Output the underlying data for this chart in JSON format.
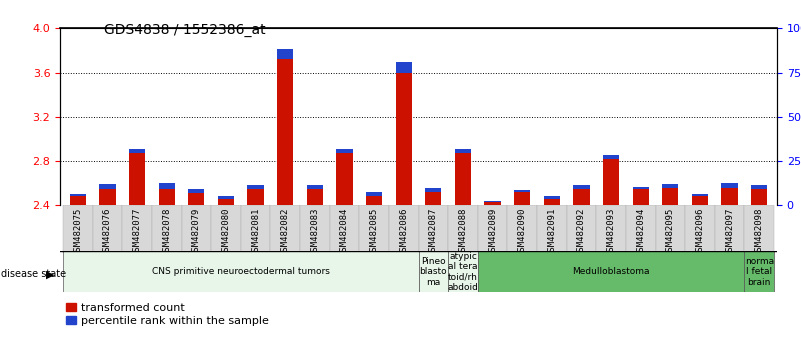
{
  "title": "GDS4838 / 1552386_at",
  "samples": [
    "GSM482075",
    "GSM482076",
    "GSM482077",
    "GSM482078",
    "GSM482079",
    "GSM482080",
    "GSM482081",
    "GSM482082",
    "GSM482083",
    "GSM482084",
    "GSM482085",
    "GSM482086",
    "GSM482087",
    "GSM482088",
    "GSM482089",
    "GSM482090",
    "GSM482091",
    "GSM482092",
    "GSM482093",
    "GSM482094",
    "GSM482095",
    "GSM482096",
    "GSM482097",
    "GSM482098"
  ],
  "red_values": [
    2.48,
    2.55,
    2.87,
    2.55,
    2.51,
    2.46,
    2.55,
    3.72,
    2.55,
    2.87,
    2.48,
    3.6,
    2.52,
    2.87,
    2.43,
    2.52,
    2.46,
    2.55,
    2.82,
    2.55,
    2.56,
    2.48,
    2.56,
    2.55
  ],
  "blue_fractions": [
    0.1,
    0.18,
    0.15,
    0.2,
    0.15,
    0.08,
    0.15,
    0.38,
    0.15,
    0.15,
    0.15,
    0.38,
    0.15,
    0.15,
    0.05,
    0.08,
    0.1,
    0.15,
    0.15,
    0.08,
    0.12,
    0.1,
    0.15,
    0.15
  ],
  "ylim": [
    2.4,
    4.0
  ],
  "yticks": [
    2.4,
    2.8,
    3.2,
    3.6,
    4.0
  ],
  "right_yticks_val": [
    2.4,
    2.8,
    3.2,
    3.6,
    4.0
  ],
  "right_yticks_label": [
    "0",
    "25",
    "50",
    "75",
    "100%"
  ],
  "disease_groups": [
    {
      "label": "CNS primitive neuroectodermal tumors",
      "start": 0,
      "end": 12,
      "color": "#e8f5e9"
    },
    {
      "label": "Pineo\nblasto\nma",
      "start": 12,
      "end": 13,
      "color": "#e8f5e9"
    },
    {
      "label": "atypic\nal tera\ntoid/rh\nabdoid",
      "start": 13,
      "end": 14,
      "color": "#e8f5e9"
    },
    {
      "label": "Medulloblastoma",
      "start": 14,
      "end": 23,
      "color": "#66bb6a"
    },
    {
      "label": "norma\nl fetal\nbrain",
      "start": 23,
      "end": 24,
      "color": "#66bb6a"
    }
  ],
  "bar_width": 0.55,
  "base_value": 2.4,
  "red_color": "#cc1100",
  "blue_color": "#2244cc",
  "title_fontsize": 10,
  "tick_fontsize": 6.5,
  "legend_fontsize": 8,
  "blue_bar_height": 0.025
}
